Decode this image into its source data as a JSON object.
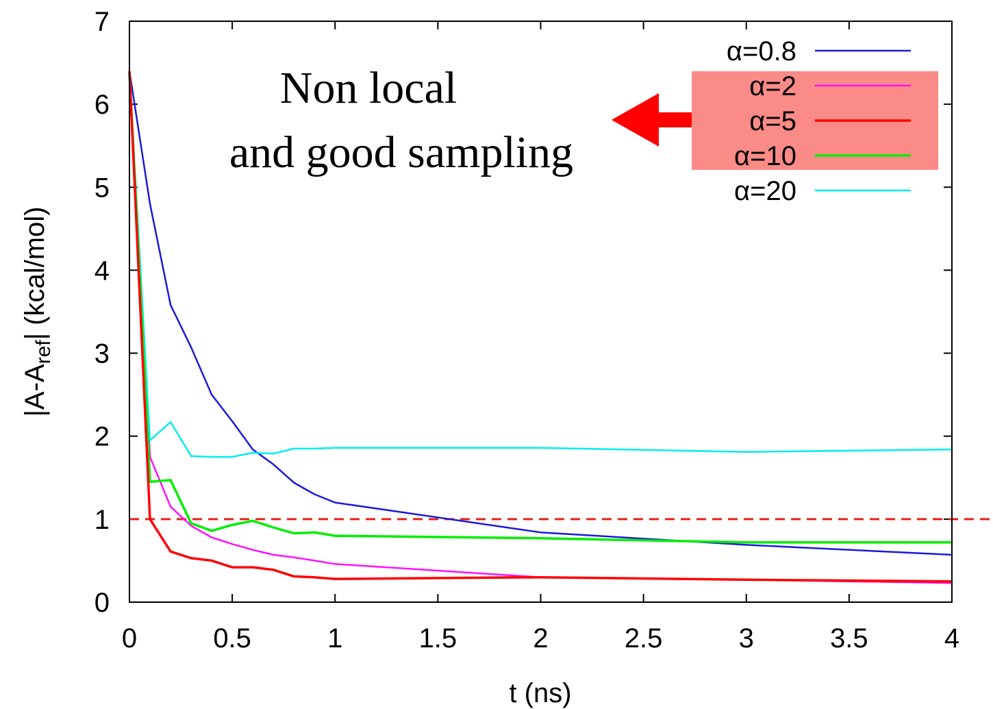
{
  "chart_data": {
    "type": "line",
    "xlabel": "t (ns)",
    "ylabel_parts": {
      "main": "|A-A",
      "sub": "ref",
      "after": "| (kcal/mol)"
    },
    "xlim": [
      0,
      4
    ],
    "ylim": [
      0,
      7
    ],
    "xticks": [
      0,
      0.5,
      1,
      1.5,
      2,
      2.5,
      3,
      3.5,
      4
    ],
    "xtick_labels": [
      "0",
      "0.5",
      "1",
      "1.5",
      "2",
      "2.5",
      "3",
      "3.5",
      "4"
    ],
    "yticks": [
      0,
      1,
      2,
      3,
      4,
      5,
      6,
      7
    ],
    "ytick_labels": [
      "0",
      "1",
      "2",
      "3",
      "4",
      "5",
      "6",
      "7"
    ],
    "grid": false,
    "legend_position": "top-right",
    "reference_line": {
      "y": 1,
      "color": "#e8211b",
      "style": "dashed"
    },
    "annotation": {
      "lines": [
        "Non local",
        "and good sampling"
      ],
      "arrow_color": "#ff0000"
    },
    "legend_highlight_color": "#fb8b87",
    "series": [
      {
        "name": "α=0.8",
        "color": "#1a1adb",
        "x": [
          0,
          0.1,
          0.2,
          0.3,
          0.4,
          0.5,
          0.6,
          0.7,
          0.8,
          0.9,
          1,
          2,
          3,
          4
        ],
        "y": [
          6.4,
          4.8,
          3.58,
          3.07,
          2.5,
          2.18,
          1.84,
          1.66,
          1.44,
          1.3,
          1.2,
          0.84,
          0.69,
          0.57
        ]
      },
      {
        "name": "α=2",
        "color": "#ff10ff",
        "x": [
          0,
          0.1,
          0.2,
          0.3,
          0.4,
          0.5,
          0.6,
          0.7,
          0.8,
          0.9,
          1,
          2,
          3,
          4
        ],
        "y": [
          6.4,
          1.75,
          1.15,
          0.92,
          0.78,
          0.7,
          0.63,
          0.57,
          0.54,
          0.5,
          0.46,
          0.3,
          0.27,
          0.23
        ]
      },
      {
        "name": "α=5",
        "color": "#ff0000",
        "x": [
          0,
          0.1,
          0.2,
          0.3,
          0.4,
          0.5,
          0.6,
          0.7,
          0.8,
          0.9,
          1,
          2,
          3,
          4
        ],
        "y": [
          6.4,
          1.0,
          0.61,
          0.53,
          0.5,
          0.42,
          0.42,
          0.39,
          0.31,
          0.3,
          0.28,
          0.3,
          0.27,
          0.25
        ]
      },
      {
        "name": "α=10",
        "color": "#00ee00",
        "x": [
          0,
          0.1,
          0.2,
          0.3,
          0.4,
          0.5,
          0.6,
          0.7,
          0.8,
          0.9,
          1,
          2,
          3,
          4
        ],
        "y": [
          6.4,
          1.45,
          1.47,
          0.95,
          0.86,
          0.93,
          0.98,
          0.9,
          0.83,
          0.84,
          0.8,
          0.77,
          0.72,
          0.72
        ]
      },
      {
        "name": "α=20",
        "color": "#00eeee",
        "x": [
          0,
          0.1,
          0.2,
          0.3,
          0.4,
          0.5,
          0.6,
          0.7,
          0.8,
          0.9,
          1,
          2,
          3,
          4
        ],
        "y": [
          6.4,
          1.95,
          2.17,
          1.76,
          1.75,
          1.75,
          1.8,
          1.79,
          1.85,
          1.85,
          1.86,
          1.86,
          1.81,
          1.84
        ]
      }
    ]
  }
}
